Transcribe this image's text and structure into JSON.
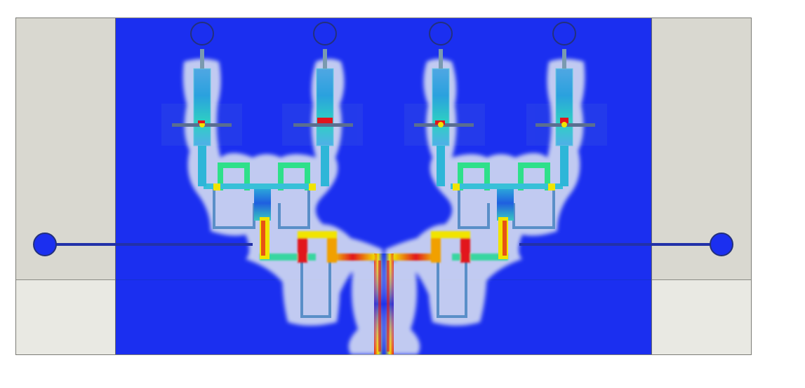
{
  "colors": {
    "background": "#ffffff",
    "substrate_blue": "#1b2ff0",
    "side_panel_upper": "#d9d8d0",
    "side_panel_lower": "#e9e9e3",
    "panel_border": "#8a8a84",
    "trace_navy": "#2231a8",
    "field_low": "#3aa0d8",
    "field_mid": "#28d7b8",
    "field_high": "#f1e400",
    "field_peak": "#e2141c",
    "field_halo": "#dfe6f2"
  },
  "ports": {
    "top_count": 4,
    "side_count": 2
  },
  "icons": {
    "port": "circle-port-icon"
  }
}
